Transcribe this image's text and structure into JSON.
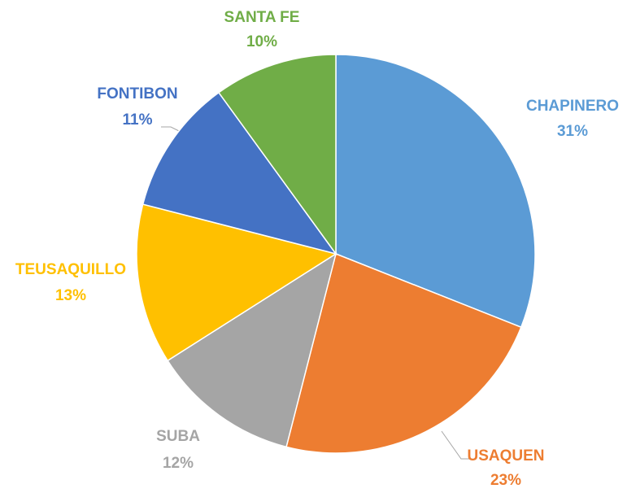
{
  "chart_data": {
    "type": "pie",
    "categories": [
      "CHAPINERO",
      "USAQUEN",
      "SUBA",
      "TEUSAQUILLO",
      "FONTIBON",
      "SANTA FE"
    ],
    "values": [
      31,
      23,
      12,
      13,
      11,
      10
    ],
    "value_labels": [
      "31%",
      "23%",
      "12%",
      "13%",
      "11%",
      "10%"
    ],
    "colors": [
      "#5b9bd5",
      "#ed7d31",
      "#a5a5a5",
      "#ffc000",
      "#4472c4",
      "#70ad47"
    ]
  }
}
